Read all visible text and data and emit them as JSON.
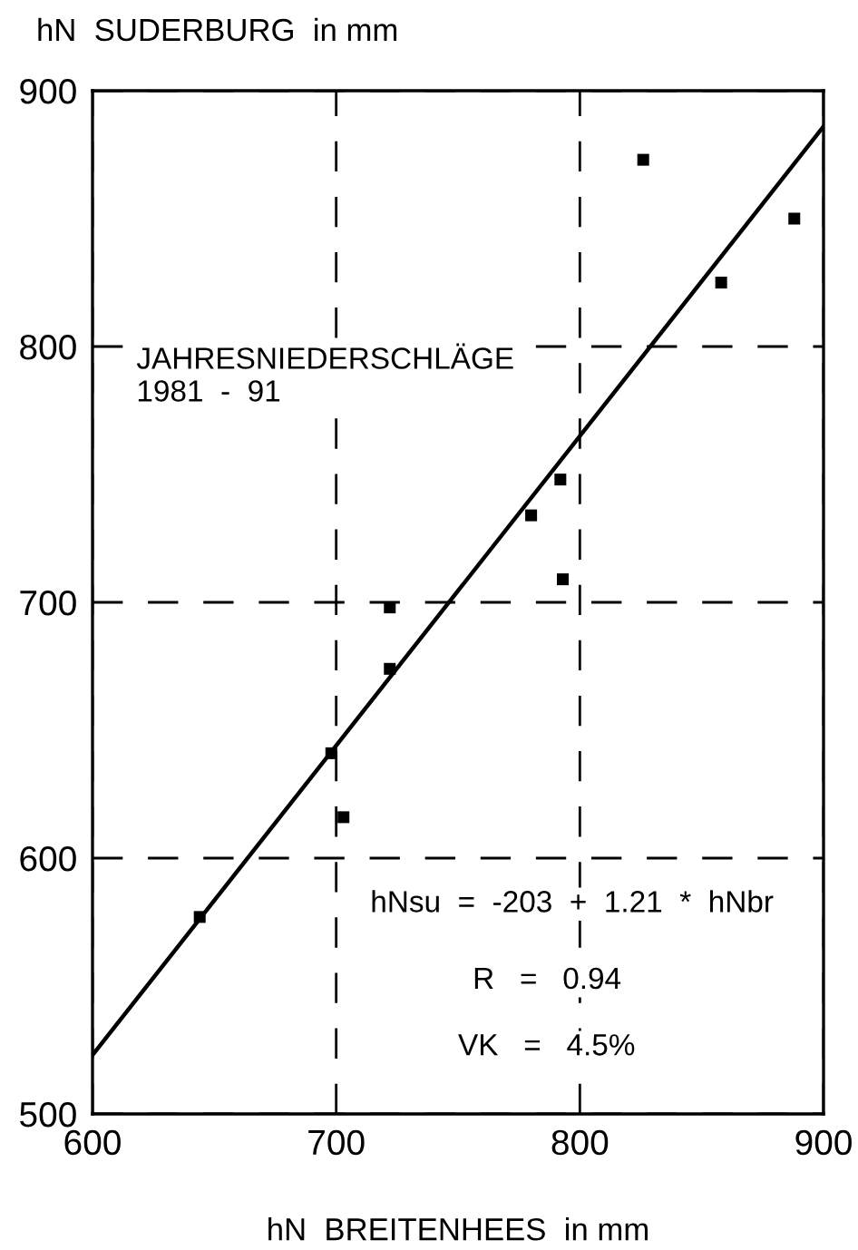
{
  "chart_data": {
    "type": "scatter",
    "xlabel": "hN  BREITENHEES  in mm",
    "ylabel": "hN  SUDERBURG  in mm",
    "annotations": [
      "JAHRESNIEDERSCHLÄGE\n1981  -  91",
      "hNsu  =  -203  +  1.21  *  hNbr",
      "R   =   0.94",
      "VK   =   4.5%"
    ],
    "series": [
      {
        "color": "#000000",
        "marker": "square",
        "x": [
          644,
          698,
          703,
          722,
          722,
          780,
          792,
          793,
          826,
          858,
          888
        ],
        "values": [
          577,
          641,
          616,
          698,
          674,
          734,
          748,
          709,
          873,
          825,
          850
        ]
      },
      {
        "type": "line",
        "color": "#000000",
        "marker": "none",
        "line_style": "solid",
        "x": [
          600,
          900
        ],
        "values": [
          523,
          886
        ]
      }
    ],
    "xlim": [
      600,
      900
    ],
    "ylim": [
      500,
      900
    ],
    "xticks": [
      600,
      700,
      800,
      900
    ],
    "yticks": [
      500,
      600,
      700,
      800,
      900
    ],
    "grid": true,
    "legend": false
  }
}
